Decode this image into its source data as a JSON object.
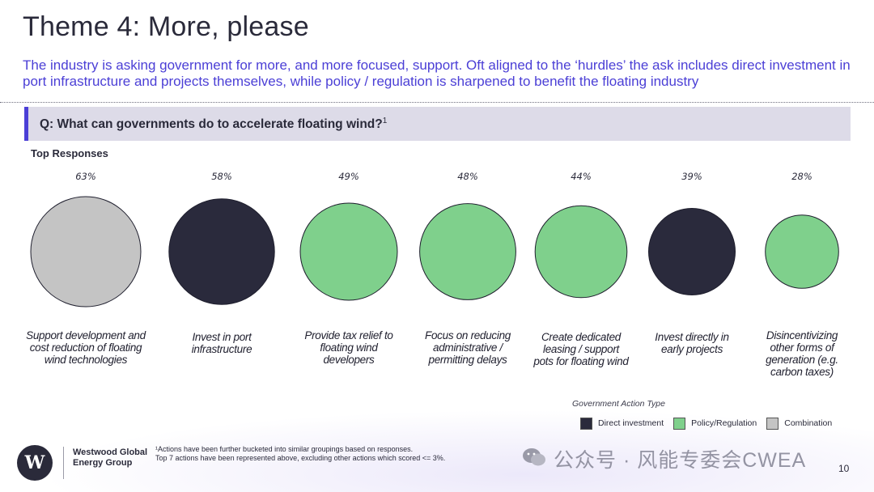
{
  "slide": {
    "title": "Theme 4: More, please",
    "subtitle": "The industry is asking government for more, and more focused, support. Oft aligned to the ‘hurdles’ the ask includes direct investment in port infrastructure and projects themselves, while policy / regulation is sharpened to benefit the floating industry",
    "question": "Q: What can governments do to accelerate floating wind?",
    "question_sup": "1",
    "section_label": "Top Responses",
    "page_number": "10"
  },
  "chart_data": {
    "type": "bubble",
    "title": "",
    "categories": [
      "Support development and cost reduction of floating wind technologies",
      "Invest in port infrastructure",
      "Provide tax relief to floating wind developers",
      "Focus on reducing administrative / permitting delays",
      "Create dedicated leasing / support pots for floating wind",
      "Invest directly in early projects",
      "Disincentivizing other forms of generation (e.g. carbon taxes)"
    ],
    "values": [
      63,
      58,
      49,
      48,
      44,
      39,
      28
    ],
    "value_labels": [
      "63%",
      "58%",
      "49%",
      "48%",
      "44%",
      "39%",
      "28%"
    ],
    "types": [
      "Combination",
      "Direct investment",
      "Policy/Regulation",
      "Policy/Regulation",
      "Policy/Regulation",
      "Direct investment",
      "Policy/Regulation"
    ],
    "legend": {
      "title": "Government Action Type",
      "position": "bottom-right",
      "items": [
        {
          "label": "Direct investment",
          "color": "#2a2a3c"
        },
        {
          "label": "Policy/Regulation",
          "color": "#7fd08c"
        },
        {
          "label": "Combination",
          "color": "#c4c4c4"
        }
      ]
    }
  },
  "footer": {
    "logo_text": "Westwood Global Energy Group",
    "logo_glyph": "W",
    "footnote_line1": "¹Actions have been further bucketed into similar groupings based on responses.",
    "footnote_line2": "Top 7 actions have been represented above, excluding other actions which scored <= 3%.",
    "watermark": "公众号 · 风能专委会CWEA"
  }
}
